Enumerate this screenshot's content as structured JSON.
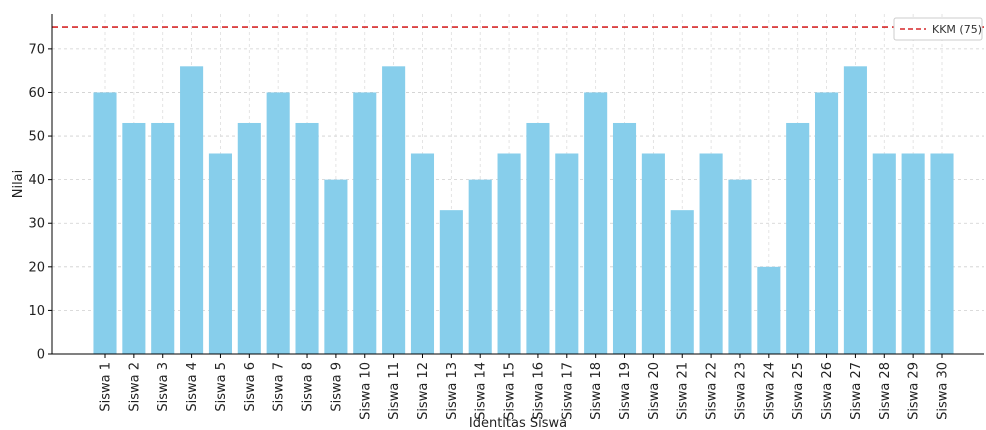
{
  "chart_data": {
    "type": "bar",
    "title": "",
    "xlabel": "Identitas Siswa",
    "ylabel": "Nilai",
    "ylim": [
      0,
      78
    ],
    "yticks": [
      0,
      10,
      20,
      30,
      40,
      50,
      60,
      70
    ],
    "grid": true,
    "categories": [
      "Siswa 1",
      "Siswa 2",
      "Siswa 3",
      "Siswa 4",
      "Siswa 5",
      "Siswa 6",
      "Siswa 7",
      "Siswa 8",
      "Siswa 9",
      "Siswa 10",
      "Siswa 11",
      "Siswa 12",
      "Siswa 13",
      "Siswa 14",
      "Siswa 15",
      "Siswa 16",
      "Siswa 17",
      "Siswa 18",
      "Siswa 19",
      "Siswa 20",
      "Siswa 21",
      "Siswa 22",
      "Siswa 23",
      "Siswa 24",
      "Siswa 25",
      "Siswa 26",
      "Siswa 27",
      "Siswa 28",
      "Siswa 29",
      "Siswa 30"
    ],
    "values": [
      60,
      53,
      53,
      66,
      46,
      53,
      60,
      53,
      40,
      60,
      66,
      46,
      33,
      40,
      46,
      53,
      46,
      60,
      53,
      46,
      33,
      46,
      40,
      20,
      53,
      60,
      66,
      46,
      46,
      46
    ],
    "bar_color": "#87CEEB",
    "reference_line": {
      "value": 75,
      "label": "KKM (75)",
      "color": "#d62728",
      "style": "dashed"
    },
    "legend_position": "top-right"
  }
}
